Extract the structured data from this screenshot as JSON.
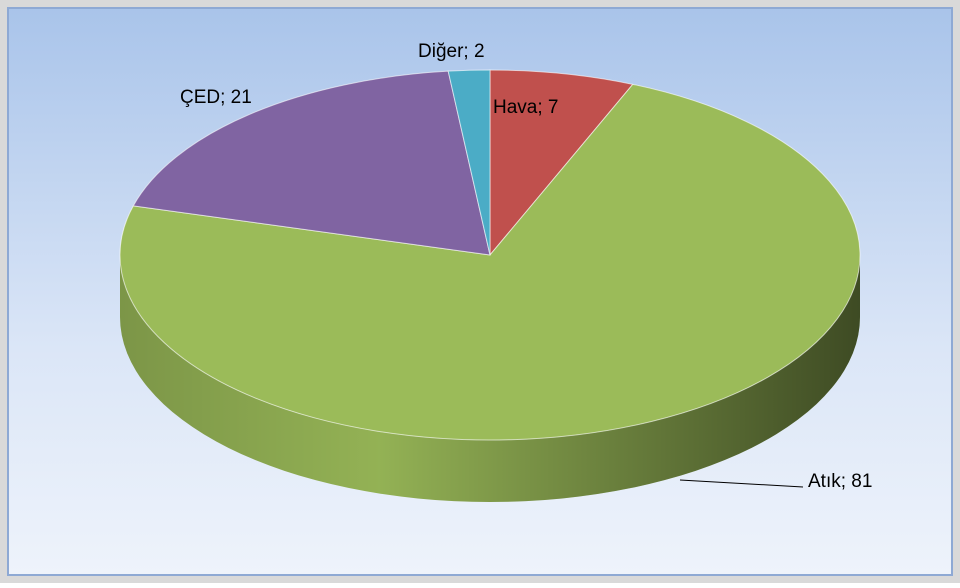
{
  "chart_data": {
    "type": "pie",
    "values": [
      7,
      81,
      21,
      2
    ],
    "value_labels": [
      "Hava; 7",
      "Atık; 81",
      "ÇED; 21",
      "Diğer; 2"
    ],
    "colors": [
      "#c0504d",
      "#9bbb59",
      "#8064a2",
      "#4bacc6"
    ]
  }
}
